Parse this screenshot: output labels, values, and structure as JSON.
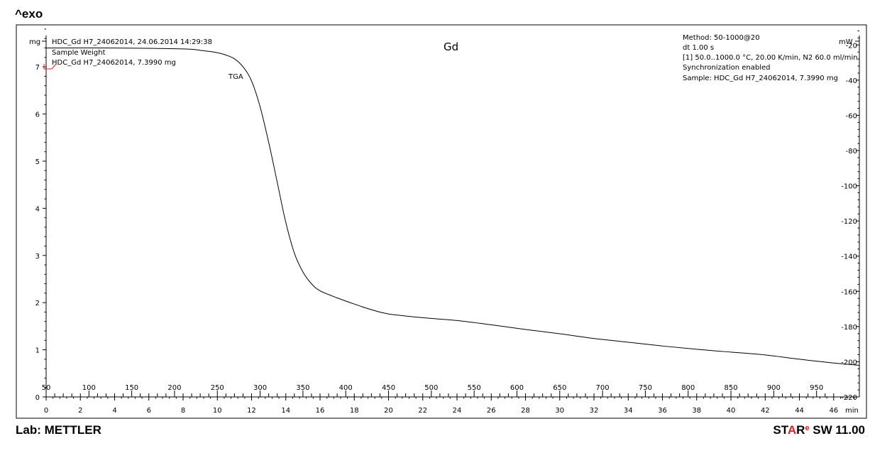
{
  "header": {
    "exo_label": "^exo"
  },
  "footer": {
    "lab": "Lab: METTLER",
    "software_s": "S",
    "software_t": "T",
    "software_a": "A",
    "software_r": "R",
    "software_mark": "e",
    "software_version": " SW 11.00"
  },
  "chart_data": {
    "type": "line",
    "title": "Gd",
    "curve_label": "TGA",
    "left_axis": {
      "unit": "mg",
      "min": 0,
      "max": 7.8,
      "ticks": [
        0,
        1,
        2,
        3,
        4,
        5,
        6,
        7
      ]
    },
    "right_axis": {
      "unit": "mW",
      "min": -220,
      "max": -11,
      "ticks": [
        -20,
        -40,
        -60,
        -80,
        -100,
        -120,
        -140,
        -160,
        -180,
        -200,
        -220
      ]
    },
    "time_axis": {
      "unit": "min",
      "min": 0,
      "max": 47.5,
      "ticks": [
        0,
        2,
        4,
        6,
        8,
        10,
        12,
        14,
        16,
        18,
        20,
        22,
        24,
        26,
        28,
        30,
        32,
        34,
        36,
        38,
        40,
        42,
        44,
        46
      ]
    },
    "temperature_axis": {
      "start_temperature": 50,
      "rate_per_min": 20,
      "ticks": [
        50,
        100,
        150,
        200,
        250,
        300,
        350,
        400,
        450,
        500,
        550,
        600,
        650,
        700,
        750,
        800,
        850,
        900,
        950
      ]
    },
    "info_left": [
      "HDC_Gd H7_24062014, 24.06.2014 14:29:38",
      "Sample Weight",
      "HDC_Gd H7_24062014, 7.3990 mg"
    ],
    "info_right": [
      "Method: 50-1000@20",
      "dt 1.00 s",
      "[1] 50.0..1000.0 °C, 20.00 K/min, N2 60.0 ml/min",
      "Synchronization enabled",
      "Sample: HDC_Gd H7_24062014, 7.3990 mg"
    ],
    "series": [
      {
        "x_unit": "min",
        "y_unit": "mg",
        "points": [
          [
            0,
            7.4
          ],
          [
            4,
            7.4
          ],
          [
            8,
            7.38
          ],
          [
            9,
            7.35
          ],
          [
            10,
            7.3
          ],
          [
            10.5,
            7.25
          ],
          [
            11,
            7.17
          ],
          [
            11.5,
            7.0
          ],
          [
            12,
            6.7
          ],
          [
            12.5,
            6.15
          ],
          [
            13,
            5.4
          ],
          [
            13.5,
            4.55
          ],
          [
            14,
            3.7
          ],
          [
            14.5,
            3.05
          ],
          [
            15,
            2.65
          ],
          [
            15.5,
            2.4
          ],
          [
            16,
            2.25
          ],
          [
            17,
            2.1
          ],
          [
            18,
            1.97
          ],
          [
            19,
            1.85
          ],
          [
            20,
            1.76
          ],
          [
            22,
            1.68
          ],
          [
            24,
            1.62
          ],
          [
            26,
            1.53
          ],
          [
            28,
            1.43
          ],
          [
            30,
            1.34
          ],
          [
            32,
            1.24
          ],
          [
            34,
            1.16
          ],
          [
            36,
            1.08
          ],
          [
            38,
            1.01
          ],
          [
            40,
            0.95
          ],
          [
            42,
            0.89
          ],
          [
            44,
            0.8
          ],
          [
            46,
            0.72
          ],
          [
            47.5,
            0.67
          ]
        ]
      }
    ]
  }
}
